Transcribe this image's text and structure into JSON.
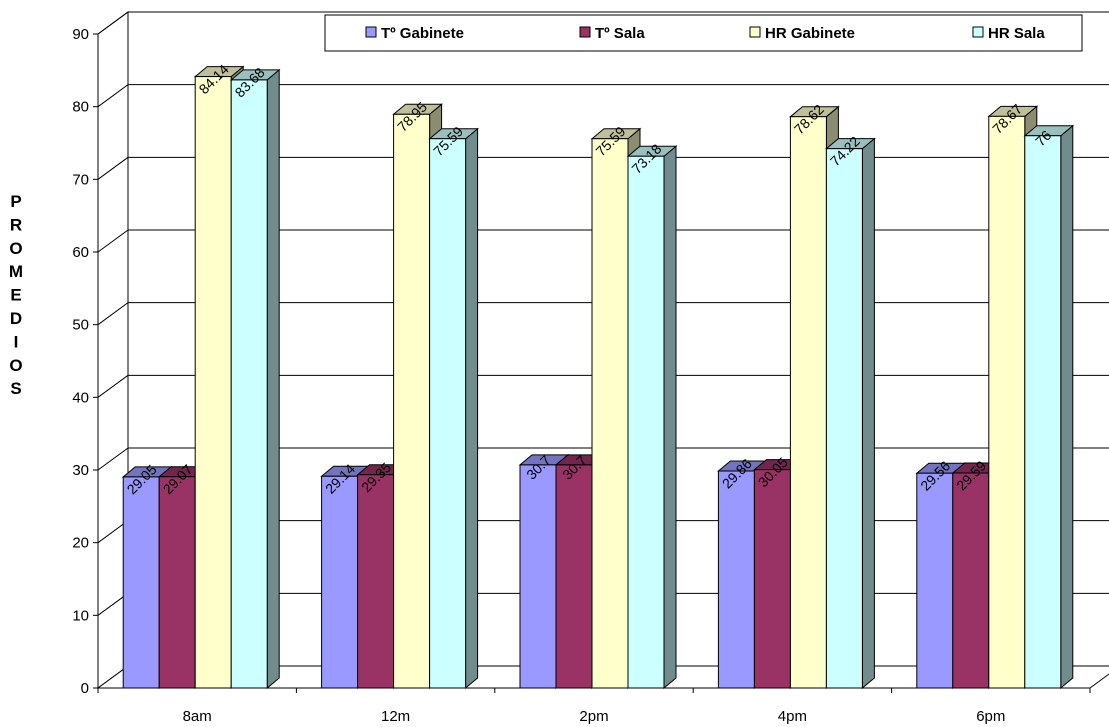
{
  "chart_data": {
    "type": "bar",
    "categories": [
      "8am",
      "12m",
      "2pm",
      "4pm",
      "6pm"
    ],
    "series": [
      {
        "name": "Tº Gabinete",
        "color": "#9999FF",
        "values": [
          29.05,
          29.14,
          30.7,
          29.86,
          29.56
        ]
      },
      {
        "name": "Tº Sala",
        "color": "#993366",
        "values": [
          29.07,
          29.35,
          30.7,
          30.05,
          29.59
        ]
      },
      {
        "name": "HR Gabinete",
        "color": "#FFFFCC",
        "values": [
          84.14,
          78.95,
          75.59,
          78.62,
          78.67
        ]
      },
      {
        "name": "HR Sala",
        "color": "#CCFFFF",
        "values": [
          83.68,
          75.59,
          73.18,
          74.22,
          76
        ]
      }
    ],
    "data_labels": [
      [
        "29.05",
        "29.14",
        "30.7",
        "29.86",
        "29.56"
      ],
      [
        "29.07",
        "29.35",
        "30.7",
        "30.05",
        "29.59"
      ],
      [
        "84.14",
        "78.95",
        "75.59",
        "78.62",
        "78.67"
      ],
      [
        "83.68",
        "75.59",
        "73.18",
        "74.22",
        "76"
      ]
    ],
    "ylabel": "PROMEDIOS",
    "ylim": [
      0,
      90
    ],
    "yticks": [
      "0",
      "10",
      "20",
      "30",
      "40",
      "50",
      "60",
      "70",
      "80",
      "90"
    ],
    "grid": true,
    "legend_position": "top",
    "three_d": true
  }
}
